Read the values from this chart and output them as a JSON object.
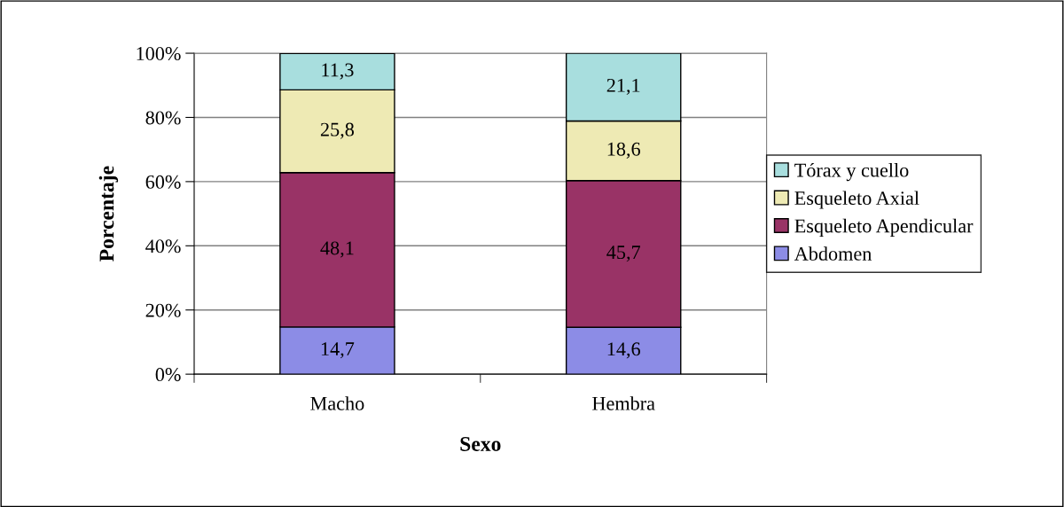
{
  "chart_data": {
    "type": "bar",
    "stacked": true,
    "xlabel": "Sexo",
    "ylabel": "Porcentaje",
    "categories": [
      "Macho",
      "Hembra"
    ],
    "series": [
      {
        "name": "Abdomen",
        "color": "#8c8ce6",
        "values": [
          14.7,
          14.6
        ],
        "value_labels": [
          "14,7",
          "14,6"
        ]
      },
      {
        "name": "Esqueleto Apendicular",
        "color": "#993366",
        "values": [
          48.1,
          45.7
        ],
        "value_labels": [
          "48,1",
          "45,7"
        ]
      },
      {
        "name": "Esqueleto Axial",
        "color": "#eeeab4",
        "values": [
          25.8,
          18.6
        ],
        "value_labels": [
          "25,8",
          "18,6"
        ]
      },
      {
        "name": "Tórax y cuello",
        "color": "#a8dede",
        "values": [
          11.3,
          21.1
        ],
        "value_labels": [
          "11,3",
          "21,1"
        ]
      }
    ],
    "ylim": [
      0,
      100
    ],
    "yticks": [
      {
        "value": 0,
        "label": "0%"
      },
      {
        "value": 20,
        "label": "20%"
      },
      {
        "value": 40,
        "label": "40%"
      },
      {
        "value": 60,
        "label": "60%"
      },
      {
        "value": 80,
        "label": "80%"
      },
      {
        "value": 100,
        "label": "100%"
      }
    ],
    "grid": "y",
    "legend": "right"
  }
}
